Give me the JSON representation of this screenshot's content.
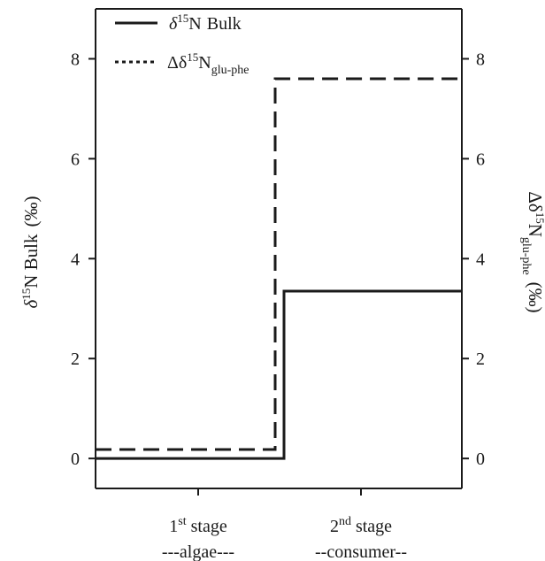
{
  "chart_data": {
    "type": "line",
    "style": "step",
    "categories": [
      {
        "line1": "1",
        "line1_sup": "st",
        "line1_rest": " stage",
        "line2": "---algae---"
      },
      {
        "line1": "2",
        "line1_sup": "nd",
        "line1_rest": " stage",
        "line2": "--consumer--"
      }
    ],
    "series": [
      {
        "name": "Bulk",
        "legend_prefix": "δ",
        "legend_sup": "15",
        "legend_main": "N",
        "legend_sub": "",
        "axis": "left",
        "line_style": "solid",
        "values": [
          0.0,
          3.35
        ]
      },
      {
        "name": "glu-phe",
        "legend_prefix": "Δδ",
        "legend_sup": "15",
        "legend_main": "N",
        "legend_sub": "glu-phe",
        "axis": "right",
        "line_style": "dashed",
        "values": [
          0.18,
          7.6
        ]
      }
    ],
    "left_axis": {
      "label_prefix": "δ",
      "label_sup": "15",
      "label_main": "N Bulk",
      "label_unit": "(‰)",
      "ylim": [
        -0.6,
        9.0
      ],
      "ticks": [
        "0",
        "2",
        "4",
        "6",
        "8"
      ]
    },
    "right_axis": {
      "label_prefix": "Δδ",
      "label_sup": "15",
      "label_main": "N",
      "label_sub": "glu-phe",
      "label_unit": "(‰)",
      "ylim": [
        -0.6,
        9.0
      ],
      "ticks": [
        "0",
        "2",
        "4",
        "6",
        "8"
      ]
    },
    "grid": false,
    "legend_position": "top-left"
  }
}
